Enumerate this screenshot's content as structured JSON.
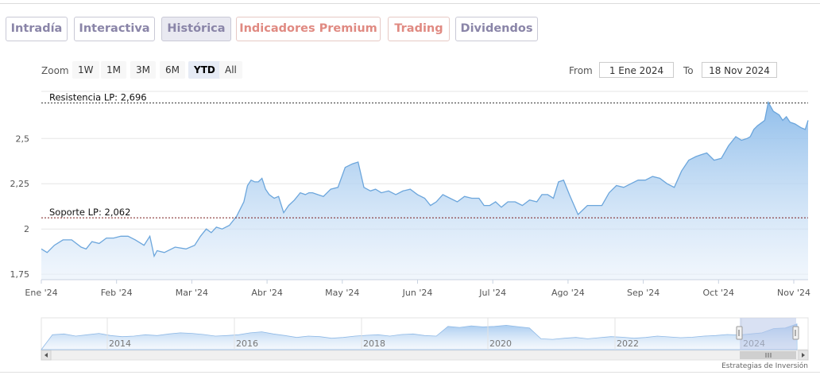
{
  "tabs": [
    {
      "label": "Intradía",
      "style": "purple",
      "active": false
    },
    {
      "label": "Interactiva",
      "style": "purple",
      "active": false
    },
    {
      "label": "Histórica",
      "style": "purple",
      "active": true
    },
    {
      "label": "Indicadores Premium",
      "style": "red",
      "active": false
    },
    {
      "label": "Trading",
      "style": "red",
      "active": false
    },
    {
      "label": "Dividendos",
      "style": "purple",
      "active": false
    }
  ],
  "zoom": {
    "label": "Zoom",
    "options": [
      "1W",
      "1M",
      "3M",
      "6M",
      "YTD",
      "All"
    ],
    "selected": "YTD"
  },
  "range": {
    "from_label": "From",
    "from_value": "1 Ene 2024",
    "to_label": "To",
    "to_value": "18 Nov 2024"
  },
  "credit": "Estrategias de Inversión",
  "colors": {
    "accent_purple": "#8a85a8",
    "accent_red": "#e08a82",
    "series_line": "#6ca6dc",
    "series_fill": "#9cc4ee",
    "navigator_mask": "#b9c8ea"
  },
  "chart_data": {
    "type": "area",
    "x_tick_labels": [
      "Ene '24",
      "Feb '24",
      "Mar '24",
      "Abr '24",
      "May '24",
      "Jun '24",
      "Jul '24",
      "Ago '24",
      "Sep '24",
      "Oct '24",
      "Nov '24"
    ],
    "y_tick_labels": [
      "1,75",
      "2",
      "2,25",
      "2,5"
    ],
    "y_ticks": [
      1.75,
      2.0,
      2.25,
      2.5
    ],
    "ylim": [
      1.72,
      2.76
    ],
    "xlim": [
      0,
      10.6
    ],
    "plot_lines": [
      {
        "label": "Resistencia LP: 2,696",
        "value": 2.696
      },
      {
        "label": "Soporte LP: 2,062",
        "value": 2.062
      }
    ],
    "x": [
      0.0,
      0.08,
      0.18,
      0.3,
      0.42,
      0.55,
      0.62,
      0.7,
      0.8,
      0.9,
      1.0,
      1.1,
      1.2,
      1.3,
      1.42,
      1.5,
      1.56,
      1.6,
      1.7,
      1.85,
      2.0,
      2.12,
      2.2,
      2.28,
      2.35,
      2.42,
      2.5,
      2.6,
      2.7,
      2.8,
      2.85,
      2.9,
      2.95,
      3.0,
      3.05,
      3.1,
      3.15,
      3.22,
      3.28,
      3.35,
      3.42,
      3.5,
      3.58,
      3.65,
      3.7,
      3.75,
      3.82,
      3.9,
      4.0,
      4.1,
      4.2,
      4.3,
      4.38,
      4.46,
      4.55,
      4.62,
      4.7,
      4.8,
      4.9,
      5.0,
      5.1,
      5.2,
      5.3,
      5.38,
      5.46,
      5.55,
      5.65,
      5.75,
      5.85,
      5.95,
      6.05,
      6.12,
      6.2,
      6.28,
      6.36,
      6.45,
      6.55,
      6.65,
      6.75,
      6.85,
      6.92,
      7.0,
      7.08,
      7.15,
      7.22,
      7.3,
      7.42,
      7.55,
      7.65,
      7.75,
      7.85,
      7.95,
      8.05,
      8.15,
      8.25,
      8.35,
      8.45,
      8.55,
      8.65,
      8.75,
      8.85,
      8.95,
      9.05,
      9.12,
      9.2,
      9.3,
      9.4,
      9.5,
      9.6,
      9.68,
      9.76,
      9.8,
      9.85,
      9.9,
      10.0,
      10.05,
      10.12,
      10.2,
      10.25,
      10.3,
      10.35,
      10.42,
      10.5,
      10.56,
      10.6
    ],
    "values": [
      1.89,
      1.87,
      1.91,
      1.94,
      1.94,
      1.9,
      1.89,
      1.93,
      1.92,
      1.95,
      1.95,
      1.96,
      1.96,
      1.94,
      1.91,
      1.96,
      1.85,
      1.88,
      1.87,
      1.9,
      1.89,
      1.91,
      1.96,
      2.0,
      1.98,
      2.01,
      2.0,
      2.02,
      2.07,
      2.15,
      2.24,
      2.27,
      2.26,
      2.26,
      2.28,
      2.22,
      2.19,
      2.17,
      2.18,
      2.09,
      2.13,
      2.16,
      2.2,
      2.19,
      2.2,
      2.2,
      2.19,
      2.18,
      2.22,
      2.23,
      2.34,
      2.36,
      2.37,
      2.23,
      2.21,
      2.22,
      2.2,
      2.21,
      2.19,
      2.21,
      2.22,
      2.19,
      2.17,
      2.13,
      2.15,
      2.19,
      2.17,
      2.15,
      2.18,
      2.17,
      2.17,
      2.13,
      2.13,
      2.15,
      2.12,
      2.15,
      2.15,
      2.13,
      2.16,
      2.15,
      2.19,
      2.19,
      2.17,
      2.26,
      2.27,
      2.19,
      2.08,
      2.13,
      2.13,
      2.13,
      2.2,
      2.24,
      2.23,
      2.25,
      2.27,
      2.27,
      2.29,
      2.28,
      2.25,
      2.23,
      2.32,
      2.38,
      2.4,
      2.41,
      2.42,
      2.38,
      2.39,
      2.46,
      2.51,
      2.49,
      2.5,
      2.51,
      2.55,
      2.57,
      2.6,
      2.7,
      2.65,
      2.63,
      2.6,
      2.62,
      2.59,
      2.58,
      2.56,
      2.55,
      2.6
    ]
  },
  "navigator": {
    "year_labels": [
      "2014",
      "2016",
      "2018",
      "2020",
      "2022",
      "2024"
    ]
  }
}
